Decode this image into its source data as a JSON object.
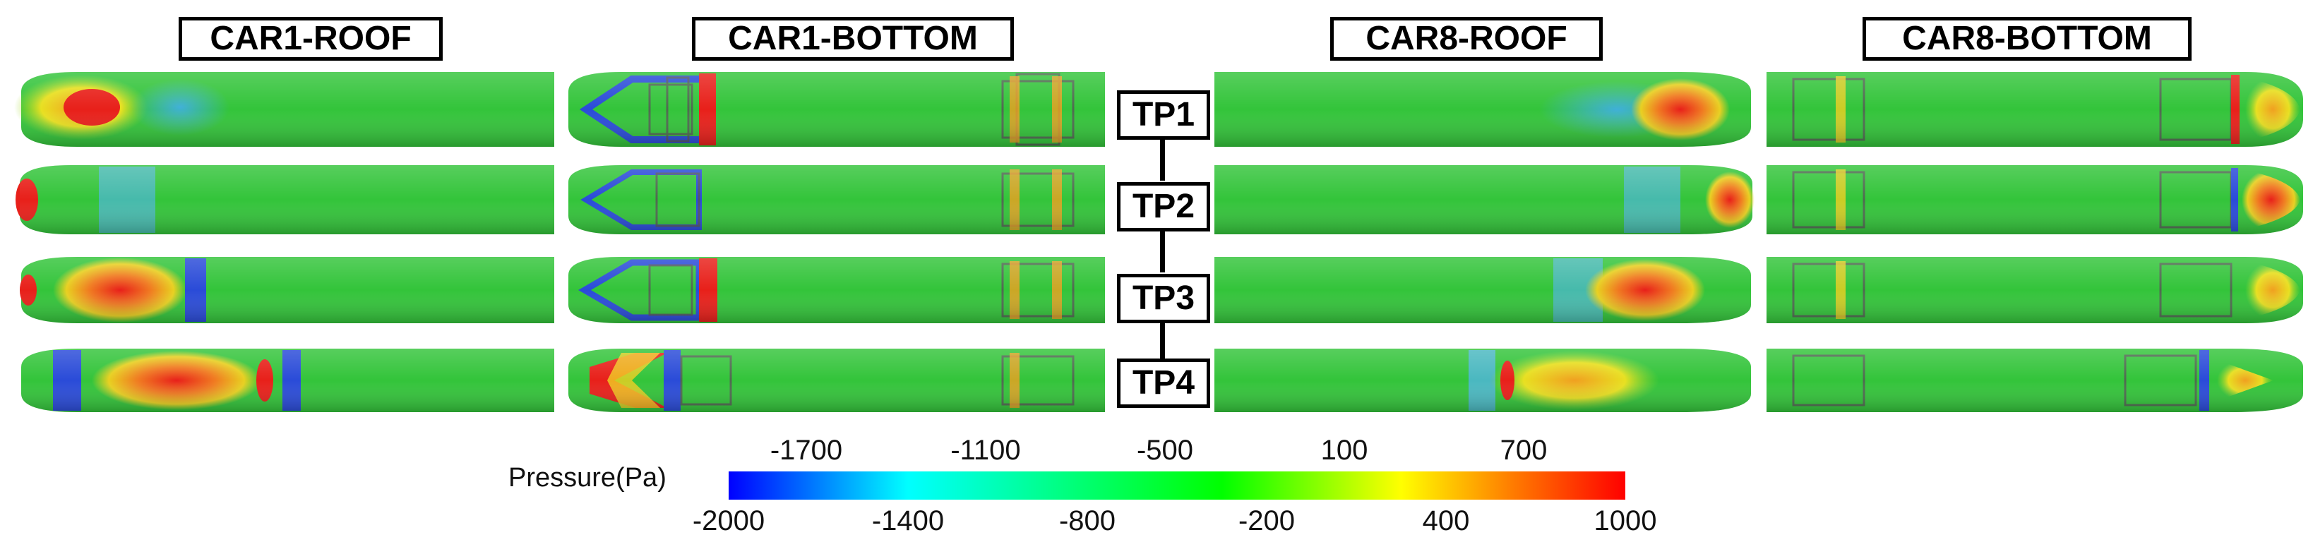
{
  "panels": {
    "car1_roof": "CAR1-ROOF",
    "car1_bottom": "CAR1-BOTTOM",
    "car8_roof": "CAR8-ROOF",
    "car8_bottom": "CAR8-BOTTOM"
  },
  "test_points": [
    "TP1",
    "TP2",
    "TP3",
    "TP4"
  ],
  "colorbar": {
    "title": "Pressure(Pa)",
    "min": -2000,
    "max": 1000,
    "upper_ticks": [
      "-1700",
      "-1100",
      "-500",
      "100",
      "700"
    ],
    "lower_ticks": [
      "-2000",
      "-1400",
      "-800",
      "-200",
      "400",
      "1000"
    ],
    "colors": [
      "#0000ff",
      "#00ffff",
      "#00ff00",
      "#ffff00",
      "#ff0000"
    ]
  },
  "surface_colors": {
    "base": "#33c43a",
    "low": "#2a4bd8",
    "mid_low": "#3fb0d8",
    "high": "#f0d020",
    "peak": "#e8201a"
  }
}
